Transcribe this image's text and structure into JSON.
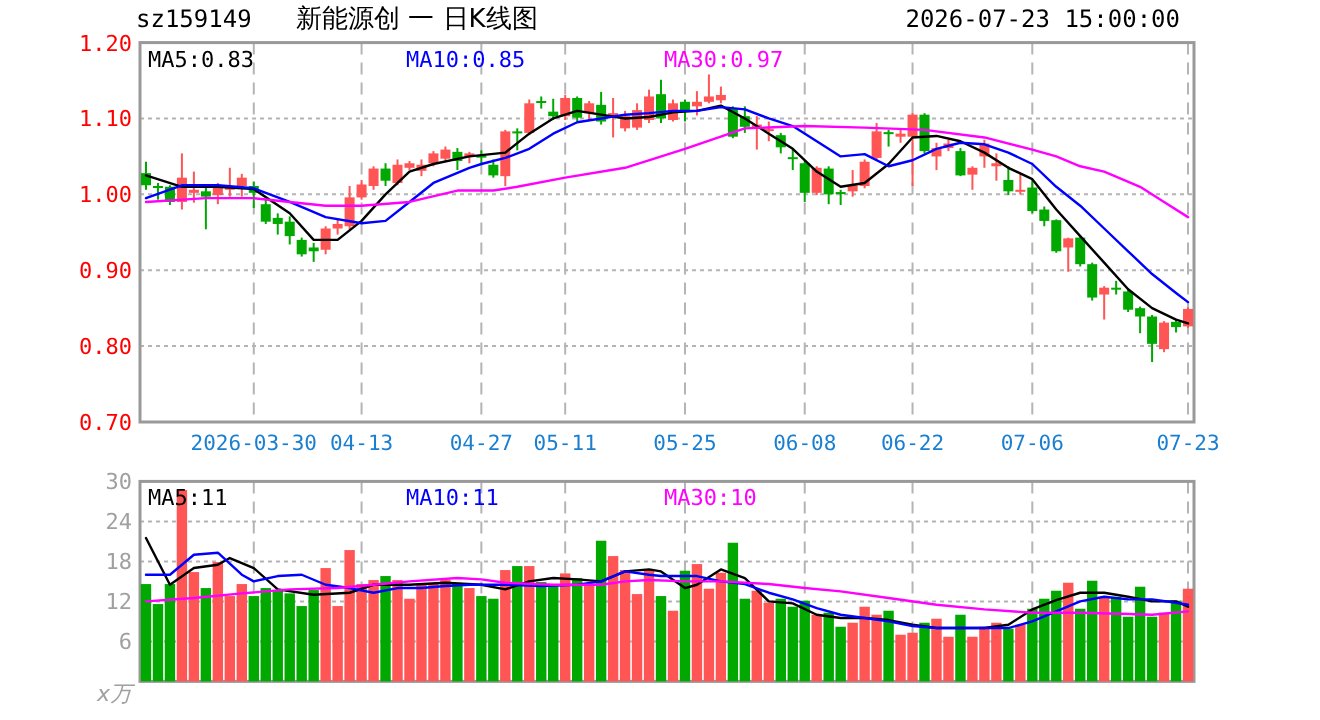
{
  "chart_data": [
    {
      "type": "candlestick",
      "subtitle": "sz159149",
      "title": "新能源创 一 日K线图",
      "annotations": [
        "2026-07-23 15:00:00"
      ],
      "categories": [
        null,
        null,
        null,
        null,
        null,
        null,
        null,
        null,
        null,
        "2026-03-30",
        null,
        null,
        null,
        null,
        null,
        null,
        null,
        null,
        "04-13",
        null,
        null,
        null,
        null,
        null,
        null,
        null,
        null,
        null,
        "04-27",
        null,
        null,
        null,
        null,
        null,
        null,
        "05-11",
        null,
        null,
        null,
        null,
        null,
        null,
        null,
        null,
        null,
        "05-25",
        null,
        null,
        null,
        null,
        null,
        null,
        null,
        null,
        null,
        "06-08",
        null,
        null,
        null,
        null,
        null,
        null,
        null,
        null,
        "06-22",
        null,
        null,
        null,
        null,
        null,
        null,
        null,
        null,
        null,
        "07-06",
        null,
        null,
        null,
        null,
        null,
        null,
        null,
        null,
        null,
        null,
        null,
        null,
        "07-23"
      ],
      "ohlc": [
        [
          1.028,
          1.043,
          1.006,
          1.012
        ],
        [
          1.011,
          1.015,
          0.993,
          1.01
        ],
        [
          1.01,
          1.012,
          0.986,
          0.99
        ],
        [
          0.99,
          1.054,
          0.98,
          1.022
        ],
        [
          1.002,
          1.03,
          0.989,
          1.006
        ],
        [
          1.004,
          1.009,
          0.954,
          0.997
        ],
        [
          0.999,
          1.015,
          0.987,
          1.01
        ],
        [
          1.006,
          1.035,
          0.997,
          1.009
        ],
        [
          1.011,
          1.027,
          0.997,
          1.022
        ],
        [
          1.011,
          1.017,
          0.982,
          1.002
        ],
        [
          0.987,
          0.993,
          0.961,
          0.964
        ],
        [
          0.969,
          0.975,
          0.947,
          0.961
        ],
        [
          0.964,
          0.971,
          0.934,
          0.945
        ],
        [
          0.94,
          0.943,
          0.918,
          0.921
        ],
        [
          0.93,
          0.936,
          0.911,
          0.925
        ],
        [
          0.927,
          0.958,
          0.921,
          0.955
        ],
        [
          0.955,
          0.967,
          0.947,
          0.961
        ],
        [
          0.958,
          1.011,
          0.954,
          0.996
        ],
        [
          0.996,
          1.019,
          0.993,
          1.013
        ],
        [
          1.011,
          1.037,
          1.006,
          1.034
        ],
        [
          1.034,
          1.041,
          1.011,
          1.018
        ],
        [
          1.015,
          1.046,
          1.012,
          1.039
        ],
        [
          1.035,
          1.044,
          1.032,
          1.041
        ],
        [
          1.031,
          1.046,
          1.024,
          1.039
        ],
        [
          1.041,
          1.057,
          1.037,
          1.054
        ],
        [
          1.047,
          1.063,
          1.043,
          1.059
        ],
        [
          1.056,
          1.061,
          1.032,
          1.044
        ],
        [
          1.05,
          1.056,
          1.041,
          1.054
        ],
        [
          1.051,
          1.058,
          1.041,
          1.049
        ],
        [
          1.039,
          1.046,
          1.022,
          1.025
        ],
        [
          1.024,
          1.085,
          1.011,
          1.083
        ],
        [
          1.083,
          1.087,
          1.058,
          1.081
        ],
        [
          1.081,
          1.125,
          1.078,
          1.12
        ],
        [
          1.123,
          1.129,
          1.113,
          1.122
        ],
        [
          1.109,
          1.126,
          1.098,
          1.103
        ],
        [
          1.103,
          1.131,
          1.098,
          1.127
        ],
        [
          1.127,
          1.129,
          1.096,
          1.101
        ],
        [
          1.107,
          1.123,
          1.098,
          1.12
        ],
        [
          1.118,
          1.135,
          1.092,
          1.096
        ],
        [
          1.103,
          1.127,
          1.075,
          1.107
        ],
        [
          1.087,
          1.11,
          1.083,
          1.103
        ],
        [
          1.088,
          1.12,
          1.085,
          1.111
        ],
        [
          1.098,
          1.138,
          1.094,
          1.129
        ],
        [
          1.132,
          1.151,
          1.094,
          1.1
        ],
        [
          1.098,
          1.125,
          1.096,
          1.12
        ],
        [
          1.122,
          1.125,
          1.096,
          1.111
        ],
        [
          1.116,
          1.136,
          1.104,
          1.122
        ],
        [
          1.122,
          1.158,
          1.12,
          1.129
        ],
        [
          1.124,
          1.142,
          1.12,
          1.131
        ],
        [
          1.113,
          1.116,
          1.074,
          1.076
        ],
        [
          1.103,
          1.116,
          1.081,
          1.089
        ],
        [
          1.088,
          1.103,
          1.059,
          1.092
        ],
        [
          1.084,
          1.096,
          1.07,
          1.086
        ],
        [
          1.078,
          1.081,
          1.054,
          1.062
        ],
        [
          1.049,
          1.061,
          1.032,
          1.047
        ],
        [
          1.041,
          1.044,
          0.99,
          1.002
        ],
        [
          1.002,
          1.037,
          0.999,
          1.035
        ],
        [
          1.034,
          1.037,
          0.987,
          1.0
        ],
        [
          1.003,
          1.006,
          0.986,
          1.001
        ],
        [
          1.004,
          1.032,
          0.997,
          1.012
        ],
        [
          1.011,
          1.046,
          1.008,
          1.043
        ],
        [
          1.048,
          1.094,
          1.046,
          1.083
        ],
        [
          1.082,
          1.085,
          1.063,
          1.08
        ],
        [
          1.076,
          1.085,
          1.068,
          1.08
        ],
        [
          1.076,
          1.107,
          1.011,
          1.105
        ],
        [
          1.105,
          1.107,
          1.054,
          1.057
        ],
        [
          1.05,
          1.068,
          1.032,
          1.061
        ],
        [
          1.061,
          1.072,
          1.057,
          1.067
        ],
        [
          1.057,
          1.061,
          1.024,
          1.025
        ],
        [
          1.026,
          1.037,
          1.006,
          1.035
        ],
        [
          1.05,
          1.072,
          1.035,
          1.067
        ],
        [
          1.037,
          1.054,
          1.018,
          1.041
        ],
        [
          1.019,
          1.037,
          0.999,
          1.004
        ],
        [
          1.005,
          1.028,
          1.0,
          1.006
        ],
        [
          1.009,
          1.019,
          0.975,
          0.978
        ],
        [
          0.98,
          0.984,
          0.958,
          0.965
        ],
        [
          0.966,
          0.967,
          0.923,
          0.925
        ],
        [
          0.93,
          0.943,
          0.898,
          0.942
        ],
        [
          0.943,
          0.944,
          0.905,
          0.908
        ],
        [
          0.908,
          0.91,
          0.86,
          0.864
        ],
        [
          0.868,
          0.879,
          0.835,
          0.877
        ],
        [
          0.877,
          0.886,
          0.868,
          0.876
        ],
        [
          0.872,
          0.874,
          0.845,
          0.848
        ],
        [
          0.85,
          0.852,
          0.817,
          0.839
        ],
        [
          0.839,
          0.841,
          0.779,
          0.803
        ],
        [
          0.796,
          0.833,
          0.792,
          0.831
        ],
        [
          0.832,
          0.836,
          0.818,
          0.825
        ],
        [
          0.826,
          0.851,
          0.824,
          0.849
        ]
      ],
      "colors": [
        "#00a800",
        "#00a800",
        "#00a800",
        "#ff5555",
        "#ff5555",
        "#00a800",
        "#ff5555",
        "#ff5555",
        "#ff5555",
        "#00a800",
        "#00a800",
        "#00a800",
        "#00a800",
        "#00a800",
        "#00a800",
        "#ff5555",
        "#ff5555",
        "#ff5555",
        "#ff5555",
        "#ff5555",
        "#00a800",
        "#ff5555",
        "#ff5555",
        "#ff5555",
        "#ff5555",
        "#ff5555",
        "#00a800",
        "#ff5555",
        "#00a800",
        "#00a800",
        "#ff5555",
        "#00a800",
        "#ff5555",
        "#00a800",
        "#00a800",
        "#ff5555",
        "#00a800",
        "#ff5555",
        "#00a800",
        "#ff5555",
        "#ff5555",
        "#ff5555",
        "#ff5555",
        "#00a800",
        "#ff5555",
        "#00a800",
        "#ff5555",
        "#ff5555",
        "#ff5555",
        "#00a800",
        "#00a800",
        "#ff5555",
        "#ff5555",
        "#00a800",
        "#00a800",
        "#00a800",
        "#ff5555",
        "#00a800",
        "#00a800",
        "#ff5555",
        "#ff5555",
        "#ff5555",
        "#00a800",
        "#ff5555",
        "#ff5555",
        "#00a800",
        "#ff5555",
        "#ff5555",
        "#00a800",
        "#ff5555",
        "#ff5555",
        "#ff5555",
        "#00a800",
        "#ff5555",
        "#00a800",
        "#00a800",
        "#00a800",
        "#ff5555",
        "#00a800",
        "#00a800",
        "#ff5555",
        "#00a800",
        "#00a800",
        "#00a800",
        "#00a800",
        "#ff5555",
        "#00a800",
        "#ff5555"
      ],
      "series": [
        {
          "type": "line",
          "name": "MA5:0.83",
          "color": "#000000",
          "values": [
            1.025,
            null,
            null,
            1.01,
            null,
            null,
            1.01,
            null,
            null,
            1.007,
            null,
            null,
            0.975,
            null,
            0.94,
            null,
            0.94,
            null,
            0.965,
            null,
            1.0,
            null,
            1.03,
            null,
            1.04,
            null,
            null,
            1.05,
            null,
            null,
            1.055,
            null,
            1.08,
            null,
            1.1,
            null,
            1.11,
            null,
            1.105,
            null,
            1.1,
            null,
            1.102,
            null,
            1.108,
            null,
            1.11,
            null,
            1.117,
            null,
            1.1,
            null,
            1.08,
            null,
            1.06,
            null,
            1.03,
            null,
            1.01,
            null,
            1.015,
            null,
            1.04,
            null,
            1.075,
            null,
            1.077,
            null,
            1.07,
            null,
            1.055,
            null,
            1.035,
            null,
            1.02,
            null,
            0.98,
            null,
            0.945,
            null,
            0.91,
            null,
            0.875,
            null,
            0.85,
            null,
            0.835,
            0.83
          ]
        },
        {
          "type": "line",
          "name": "MA10:0.85",
          "color": "#0000ff",
          "values": [
            0.995,
            null,
            null,
            1.012,
            null,
            null,
            1.012,
            null,
            null,
            1.008,
            null,
            null,
            0.99,
            null,
            null,
            0.97,
            null,
            null,
            0.962,
            null,
            0.965,
            null,
            0.99,
            null,
            1.015,
            null,
            null,
            1.035,
            1.04,
            null,
            1.048,
            null,
            1.06,
            null,
            1.08,
            null,
            1.095,
            null,
            1.1,
            null,
            1.105,
            null,
            1.107,
            null,
            1.11,
            null,
            1.11,
            null,
            1.115,
            null,
            1.112,
            null,
            1.1,
            null,
            1.09,
            null,
            1.07,
            null,
            1.05,
            null,
            1.053,
            null,
            1.037,
            null,
            1.045,
            null,
            1.06,
            null,
            1.068,
            null,
            1.066,
            null,
            1.055,
            null,
            1.04,
            null,
            1.01,
            null,
            0.985,
            null,
            0.955,
            null,
            0.925,
            null,
            0.895,
            null,
            0.87,
            0.858
          ]
        },
        {
          "type": "line",
          "name": "MA30:0.97",
          "color": "#ff00ff",
          "values": [
            0.99,
            null,
            null,
            null,
            null,
            0.995,
            null,
            null,
            null,
            0.995,
            null,
            null,
            0.99,
            null,
            null,
            0.985,
            null,
            null,
            0.985,
            null,
            null,
            null,
            0.99,
            null,
            null,
            null,
            1.005,
            null,
            null,
            1.005,
            null,
            1.01,
            null,
            null,
            null,
            1.022,
            null,
            null,
            null,
            null,
            1.035,
            null,
            null,
            null,
            null,
            1.06,
            null,
            null,
            null,
            null,
            1.087,
            null,
            null,
            null,
            null,
            1.09,
            null,
            null,
            null,
            null,
            1.088,
            null,
            null,
            null,
            null,
            1.085,
            null,
            null,
            null,
            null,
            1.075,
            null,
            null,
            null,
            1.059,
            null,
            1.05,
            null,
            1.037,
            null,
            1.03,
            null,
            null,
            1.01,
            null,
            0.99,
            null,
            0.97
          ]
        }
      ],
      "ylim": [
        0.7,
        1.2
      ],
      "yticks": [
        {
          "value": 0.7,
          "label": "0.70"
        },
        {
          "value": 0.8,
          "label": "0.80"
        },
        {
          "value": 0.9,
          "label": "0.90"
        },
        {
          "value": 1.0,
          "label": "1.00"
        },
        {
          "value": 1.1,
          "label": "1.10"
        },
        {
          "value": 1.2,
          "label": "1.20"
        }
      ],
      "grid": true,
      "legend": "top"
    },
    {
      "type": "bar",
      "ylabel": "x万",
      "tick_labels": "y",
      "categories": [
        null,
        null,
        null,
        null,
        null,
        null,
        null,
        null,
        null,
        null,
        null,
        null,
        null,
        null,
        null,
        null,
        null,
        null,
        null,
        null,
        null,
        null,
        null,
        null,
        null,
        null,
        null,
        null,
        null,
        null,
        null,
        null,
        null,
        null,
        null,
        null,
        null,
        null,
        null,
        null,
        null,
        null,
        null,
        null,
        null,
        null,
        null,
        null,
        null,
        null,
        null,
        null,
        null,
        null,
        null,
        null,
        null,
        null,
        null,
        null,
        null,
        null,
        null,
        null,
        null,
        null,
        null,
        null,
        null,
        null,
        null,
        null,
        null,
        null,
        null,
        null,
        null,
        null,
        null,
        null,
        null,
        null,
        null,
        null,
        null,
        null,
        null,
        null
      ],
      "values": [
        14.6,
        11.6,
        14.6,
        28.7,
        16.4,
        14.0,
        17.9,
        12.8,
        14.6,
        12.8,
        14.0,
        13.7,
        13.2,
        11.3,
        13.7,
        17.0,
        11.3,
        19.7,
        14.6,
        15.2,
        15.8,
        15.2,
        12.4,
        14.6,
        14.6,
        15.2,
        14.6,
        14.0,
        12.8,
        12.4,
        16.7,
        17.3,
        17.3,
        14.9,
        14.6,
        16.2,
        15.5,
        14.6,
        21.1,
        18.8,
        16.7,
        13.1,
        16.7,
        12.8,
        10.6,
        16.6,
        17.6,
        13.9,
        16.3,
        20.8,
        12.4,
        13.6,
        11.8,
        12.4,
        11.2,
        12.1,
        10.0,
        10.3,
        8.2,
        8.8,
        11.2,
        10.0,
        10.6,
        7.0,
        7.3,
        8.8,
        9.4,
        6.7,
        10.0,
        6.7,
        8.2,
        8.8,
        7.9,
        8.5,
        10.9,
        12.4,
        13.6,
        14.8,
        10.9,
        15.1,
        12.7,
        12.7,
        9.7,
        14.2,
        9.7,
        10.3,
        12.1,
        13.9
      ],
      "colors": [
        "#00a800",
        "#00a800",
        "#00a800",
        "#ff5555",
        "#ff5555",
        "#00a800",
        "#ff5555",
        "#ff5555",
        "#ff5555",
        "#00a800",
        "#00a800",
        "#00a800",
        "#00a800",
        "#00a800",
        "#00a800",
        "#ff5555",
        "#ff5555",
        "#ff5555",
        "#ff5555",
        "#ff5555",
        "#00a800",
        "#ff5555",
        "#ff5555",
        "#ff5555",
        "#ff5555",
        "#ff5555",
        "#00a800",
        "#ff5555",
        "#00a800",
        "#00a800",
        "#ff5555",
        "#00a800",
        "#ff5555",
        "#00a800",
        "#00a800",
        "#ff5555",
        "#00a800",
        "#ff5555",
        "#00a800",
        "#ff5555",
        "#ff5555",
        "#ff5555",
        "#ff5555",
        "#00a800",
        "#ff5555",
        "#00a800",
        "#ff5555",
        "#ff5555",
        "#ff5555",
        "#00a800",
        "#00a800",
        "#ff5555",
        "#ff5555",
        "#00a800",
        "#00a800",
        "#00a800",
        "#ff5555",
        "#00a800",
        "#00a800",
        "#ff5555",
        "#ff5555",
        "#ff5555",
        "#00a800",
        "#ff5555",
        "#ff5555",
        "#00a800",
        "#ff5555",
        "#ff5555",
        "#00a800",
        "#ff5555",
        "#ff5555",
        "#ff5555",
        "#00a800",
        "#ff5555",
        "#00a800",
        "#00a800",
        "#00a800",
        "#ff5555",
        "#00a800",
        "#00a800",
        "#ff5555",
        "#00a800",
        "#00a800",
        "#00a800",
        "#00a800",
        "#ff5555",
        "#00a800",
        "#ff5555"
      ],
      "series": [
        {
          "type": "line",
          "name": "MA5:11",
          "color": "#000000",
          "values": [
            21.5,
            null,
            14.5,
            null,
            17,
            null,
            17.5,
            18.5,
            null,
            17,
            null,
            13.8,
            null,
            null,
            13,
            null,
            null,
            13.3,
            null,
            14.5,
            null,
            null,
            14.5,
            null,
            null,
            14.8,
            null,
            null,
            14.5,
            null,
            13.8,
            null,
            15,
            null,
            15.5,
            null,
            15.3,
            null,
            15,
            null,
            16.5,
            null,
            16.8,
            16.5,
            null,
            14,
            14.5,
            null,
            16.8,
            null,
            15.5,
            null,
            12,
            null,
            11.7,
            null,
            10,
            null,
            9.5,
            null,
            9.5,
            null,
            9.2,
            null,
            8.5,
            null,
            8,
            null,
            8,
            null,
            8,
            null,
            8.5,
            null,
            10.8,
            null,
            12.2,
            null,
            13.3,
            null,
            13.3,
            null,
            12.7,
            null,
            12,
            null,
            12,
            11.2
          ]
        },
        {
          "type": "line",
          "name": "MA10:11",
          "color": "#0000ff",
          "values": [
            16,
            null,
            16,
            null,
            19,
            null,
            19.3,
            null,
            16,
            15,
            null,
            15.8,
            null,
            16,
            null,
            14.5,
            null,
            14,
            null,
            13.3,
            null,
            14,
            null,
            14,
            null,
            14.3,
            null,
            14.5,
            null,
            null,
            14.5,
            null,
            null,
            14.3,
            null,
            null,
            14.5,
            null,
            15,
            null,
            16.5,
            null,
            16,
            15.8,
            null,
            null,
            15.8,
            null,
            15,
            null,
            14.6,
            null,
            13.3,
            null,
            12.3,
            null,
            11,
            null,
            10,
            null,
            9.5,
            null,
            9,
            null,
            8.3,
            null,
            8,
            null,
            8,
            null,
            8,
            null,
            8,
            null,
            9,
            null,
            10.5,
            null,
            12,
            null,
            12.7,
            null,
            12.3,
            null,
            12.3,
            null,
            11.8,
            11.5
          ]
        },
        {
          "type": "line",
          "name": "MA30:10",
          "color": "#ff00ff",
          "values": [
            12,
            null,
            null,
            null,
            12.5,
            null,
            null,
            null,
            13.2,
            null,
            null,
            null,
            13.8,
            null,
            null,
            null,
            14,
            null,
            null,
            14.5,
            null,
            null,
            15,
            null,
            null,
            null,
            15.5,
            null,
            15.3,
            null,
            14.8,
            null,
            null,
            null,
            14.5,
            null,
            null,
            null,
            14.5,
            null,
            15,
            null,
            15.2,
            null,
            null,
            15,
            null,
            null,
            15,
            null,
            null,
            null,
            14.6,
            null,
            null,
            14,
            null,
            null,
            13.5,
            null,
            null,
            null,
            12.5,
            null,
            null,
            null,
            11.5,
            null,
            null,
            null,
            10.8,
            null,
            null,
            null,
            10.3,
            null,
            null,
            null,
            10.3,
            null,
            null,
            null,
            10.1,
            null,
            10,
            null,
            null,
            10.5
          ]
        }
      ],
      "ylim": [
        0,
        30
      ],
      "yticks": [
        6,
        12,
        18,
        24,
        30
      ],
      "grid": true,
      "legend": "top"
    }
  ]
}
